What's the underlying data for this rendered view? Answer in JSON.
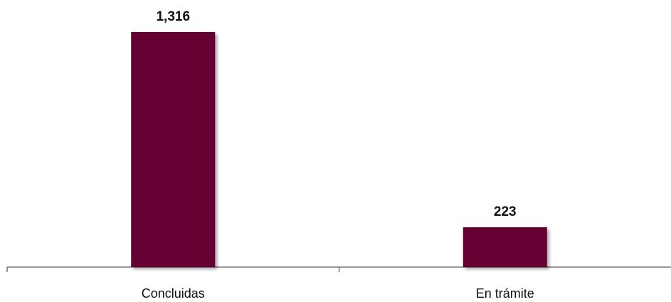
{
  "chart_data": {
    "type": "bar",
    "categories": [
      "Concluidas",
      "En trámite"
    ],
    "values": [
      1316,
      223
    ],
    "value_labels": [
      "1,316",
      "223"
    ],
    "title": "",
    "xlabel": "",
    "ylabel": "",
    "ylim": [
      0,
      1400
    ],
    "grid": false,
    "legend": "none",
    "bar_color": "#660033"
  }
}
